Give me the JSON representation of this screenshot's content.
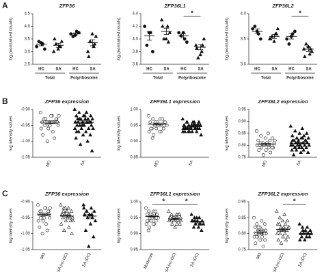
{
  "chart_data": [
    {
      "type": "strip",
      "panel": "A",
      "title": "ZFP36",
      "y_label": "log₂(normalised counts)",
      "categories": [
        "HC",
        "SA",
        "HC",
        "SA"
      ],
      "groups": [
        {
          "label": "Total",
          "size": 2
        },
        {
          "label": "Polyribosome",
          "size": 2
        }
      ],
      "markers": [
        "circle",
        "triangle",
        "circle",
        "triangle"
      ],
      "values": [
        [
          3.2,
          3.3,
          3.4,
          3.1,
          3.35
        ],
        [
          3.0,
          3.2,
          3.3,
          3.4,
          3.1,
          3.5,
          3.2
        ],
        [
          3.7,
          3.8,
          3.6,
          3.75,
          3.65
        ],
        [
          3.0,
          3.2,
          3.4,
          3.6,
          3.7,
          2.8,
          3.3
        ]
      ],
      "means": [
        3.3,
        3.25,
        3.7,
        3.35
      ],
      "errors": [
        0.07,
        0.08,
        0.04,
        0.12
      ],
      "ylim": [
        2.5,
        4.5
      ],
      "yticks": [
        2.5,
        {
          "value": 3.0,
          "label": "3.0"
        },
        3.5,
        {
          "value": 4.0,
          "label": "4.0"
        },
        4.5
      ]
    },
    {
      "type": "strip",
      "title": "ZFP36L1",
      "y_label": "log₂(normalised counts)",
      "categories": [
        "HC",
        "SA",
        "HC",
        "SA"
      ],
      "groups": [
        {
          "label": "Total",
          "size": 2
        },
        {
          "label": "Polyribosome",
          "size": 2
        }
      ],
      "markers": [
        "circle",
        "triangle",
        "circle",
        "triangle"
      ],
      "values": [
        [
          4.2,
          4.1,
          3.9,
          3.8,
          4.1
        ],
        [
          4.3,
          4.2,
          4.0,
          4.1,
          4.0,
          4.2,
          3.95
        ],
        [
          4.1,
          4.0,
          4.05,
          3.95,
          4.1
        ],
        [
          3.9,
          3.8,
          3.7,
          4.0,
          3.75,
          3.85,
          3.9
        ]
      ],
      "means": [
        4.05,
        4.12,
        4.05,
        3.87
      ],
      "errors": [
        0.07,
        0.05,
        0.03,
        0.04
      ],
      "significance": [
        {
          "label": "*",
          "from": 2,
          "to": 3
        }
      ],
      "ylim": [
        3.6,
        4.4
      ],
      "yticks": [
        3.6,
        3.8,
        {
          "value": 4.0,
          "label": "4.0"
        },
        4.2,
        4.4
      ]
    },
    {
      "type": "strip",
      "title": "ZFP36L2",
      "y_label": "log₂(normalised counts)",
      "categories": [
        "HC",
        "SA",
        "HC",
        "SA"
      ],
      "groups": [
        {
          "label": "Total",
          "size": 2
        },
        {
          "label": "Polyribosome",
          "size": 2
        }
      ],
      "markers": [
        "circle",
        "triangle",
        "circle",
        "triangle"
      ],
      "values": [
        [
          3.7,
          3.6,
          3.75,
          3.5,
          3.65
        ],
        [
          3.5,
          3.6,
          3.55,
          3.7,
          3.45,
          3.5,
          3.6
        ],
        [
          3.5,
          3.6,
          3.4,
          3.65,
          3.55
        ],
        [
          3.3,
          3.2,
          3.4,
          3.25,
          3.35,
          3.15,
          3.3
        ]
      ],
      "means": [
        3.65,
        3.55,
        3.55,
        3.3
      ],
      "errors": [
        0.05,
        0.04,
        0.05,
        0.05
      ],
      "significance": [
        {
          "label": "*",
          "from": 2,
          "to": 3
        }
      ],
      "ylim": [
        3.0,
        4.0
      ],
      "yticks": [
        {
          "value": 3.0,
          "label": "3.0"
        },
        3.5,
        {
          "value": 4.0,
          "label": "4.0"
        }
      ]
    },
    {
      "type": "strip",
      "panel": "B",
      "title": "ZFP36 expression",
      "y_label": "log intensity values",
      "categories": [
        "MO",
        "SA"
      ],
      "markers": [
        "circle-open",
        "triangle"
      ],
      "values": [
        [
          -0.91,
          -0.92,
          -0.93,
          -0.93,
          -0.94,
          -0.94,
          -0.94,
          -0.95,
          -0.95,
          -0.92,
          -0.93,
          -0.94,
          -0.96,
          -0.96,
          -0.97,
          -0.93,
          -0.94,
          -0.95,
          -0.98,
          -0.99,
          -1.0,
          -0.92,
          -0.94,
          -0.95,
          -0.93
        ],
        [
          -0.9,
          -0.91,
          -0.91,
          -0.92,
          -0.92,
          -0.92,
          -0.93,
          -0.93,
          -0.93,
          -0.93,
          -0.94,
          -0.94,
          -0.94,
          -0.94,
          -0.94,
          -0.95,
          -0.95,
          -0.95,
          -0.95,
          -0.96,
          -0.96,
          -0.96,
          -0.97,
          -0.97,
          -0.98,
          -0.98,
          -0.99,
          -1.0,
          -1.01,
          -1.03,
          -0.92,
          -0.93,
          -0.94,
          -0.95,
          -0.96,
          -0.91,
          -0.93,
          -0.94,
          -0.95,
          -0.97
        ]
      ],
      "means": [
        -0.94,
        -0.94
      ],
      "errors": [
        0.004,
        0.004
      ],
      "ylim": [
        -1.05,
        -0.9
      ],
      "yticks": [
        {
          "value": -0.9,
          "label": "-0.90"
        },
        -0.95,
        {
          "value": -1.0,
          "label": "-1.00"
        },
        -1.05
      ]
    },
    {
      "type": "strip",
      "title": "ZFP36L1 expression",
      "y_label": "log intensity values",
      "categories": [
        "MO",
        "SA"
      ],
      "markers": [
        "circle-open",
        "triangle"
      ],
      "values": [
        [
          0.98,
          0.97,
          0.97,
          0.96,
          0.96,
          0.96,
          0.95,
          0.95,
          0.95,
          0.95,
          0.94,
          0.94,
          0.94,
          0.93,
          0.93,
          0.92,
          0.96,
          0.95,
          0.94,
          0.97,
          0.96,
          0.95,
          0.93,
          0.91,
          0.95
        ],
        [
          0.97,
          0.96,
          0.96,
          0.96,
          0.95,
          0.95,
          0.95,
          0.95,
          0.95,
          0.95,
          0.94,
          0.94,
          0.94,
          0.94,
          0.94,
          0.94,
          0.94,
          0.93,
          0.93,
          0.93,
          0.93,
          0.92,
          0.95,
          0.96,
          0.95,
          0.94,
          0.95,
          0.94,
          0.93,
          0.95,
          0.96,
          0.94,
          0.95,
          0.94,
          0.93,
          0.95,
          0.94,
          0.96,
          0.95,
          0.94
        ]
      ],
      "means": [
        0.954,
        0.946
      ],
      "errors": [
        0.003,
        0.002
      ],
      "ylim": [
        0.85,
        1.0
      ],
      "yticks": [
        {
          "value": 1.0,
          "label": "1.00"
        },
        0.95,
        {
          "value": 0.9,
          "label": "0.90"
        },
        0.85
      ]
    },
    {
      "type": "strip",
      "title": "ZFP36L2 expression",
      "y_label": "log intensity values",
      "categories": [
        "MO",
        "SA"
      ],
      "markers": [
        "circle-open",
        "triangle"
      ],
      "values": [
        [
          0.86,
          0.85,
          0.84,
          0.83,
          0.83,
          0.82,
          0.82,
          0.81,
          0.81,
          0.81,
          0.8,
          0.8,
          0.8,
          0.8,
          0.79,
          0.79,
          0.79,
          0.78,
          0.78,
          0.77,
          0.76,
          0.82,
          0.8,
          0.81,
          0.79
        ],
        [
          0.88,
          0.87,
          0.86,
          0.85,
          0.85,
          0.84,
          0.84,
          0.83,
          0.83,
          0.83,
          0.82,
          0.82,
          0.82,
          0.81,
          0.81,
          0.81,
          0.81,
          0.8,
          0.8,
          0.8,
          0.8,
          0.8,
          0.79,
          0.79,
          0.79,
          0.79,
          0.78,
          0.78,
          0.78,
          0.77,
          0.77,
          0.76,
          0.82,
          0.81,
          0.8,
          0.83,
          0.79,
          0.81,
          0.8,
          0.82
        ]
      ],
      "means": [
        0.805,
        0.808
      ],
      "errors": [
        0.004,
        0.003
      ],
      "ylim": [
        0.75,
        0.95
      ],
      "yticks": [
        0.95,
        {
          "value": 0.9,
          "label": "0.90"
        },
        0.85,
        {
          "value": 0.8,
          "label": "0.80"
        },
        0.75
      ]
    },
    {
      "type": "strip",
      "panel": "C",
      "title": "ZFP36 expression",
      "y_label": "log intensity values",
      "categories": [
        "MO",
        "SA (no OC)",
        "SA (OC)"
      ],
      "markers": [
        "circle-open",
        "triangle-open",
        "triangle"
      ],
      "values": [
        [
          -0.91,
          -0.92,
          -0.93,
          -0.93,
          -0.94,
          -0.94,
          -0.94,
          -0.95,
          -0.95,
          -0.92,
          -0.93,
          -0.94,
          -0.96,
          -0.96,
          -0.97,
          -0.93,
          -0.94,
          -0.95,
          -0.98,
          -0.99,
          -1.0,
          -0.92,
          -0.94,
          -0.95,
          -0.93
        ],
        [
          -0.91,
          -0.92,
          -0.92,
          -0.93,
          -0.93,
          -0.94,
          -0.94,
          -0.94,
          -0.95,
          -0.95,
          -0.95,
          -0.96,
          -0.96,
          -0.97,
          -0.98,
          -0.99,
          -1.0,
          -0.93,
          -0.94,
          -0.95,
          -0.92,
          -0.96,
          -0.94,
          -0.93
        ],
        [
          -0.91,
          -0.92,
          -0.93,
          -0.93,
          -0.94,
          -0.94,
          -0.95,
          -0.95,
          -0.96,
          -0.97,
          -0.99,
          -1.01,
          -1.04,
          -0.92,
          -0.94,
          -0.93
        ]
      ],
      "means": [
        -0.94,
        -0.945,
        -0.945
      ],
      "errors": [
        0.004,
        0.004,
        0.006
      ],
      "ylim": [
        -1.05,
        -0.9
      ],
      "yticks": [
        {
          "value": -0.9,
          "label": "-0.90"
        },
        -0.95,
        {
          "value": -1.0,
          "label": "-1.00"
        },
        -1.05
      ]
    },
    {
      "type": "strip",
      "title": "ZFP36L1 expression",
      "y_label": "log intensity values",
      "categories": [
        "Moderate",
        "SA (no OC)",
        "SA (OC)"
      ],
      "markers": [
        "circle-open",
        "triangle-open",
        "triangle"
      ],
      "values": [
        [
          0.98,
          0.97,
          0.97,
          0.96,
          0.96,
          0.96,
          0.95,
          0.95,
          0.95,
          0.95,
          0.94,
          0.94,
          0.94,
          0.93,
          0.93,
          0.92,
          0.96,
          0.95,
          0.94,
          0.97,
          0.96,
          0.95,
          0.93,
          0.91,
          0.95
        ],
        [
          0.97,
          0.96,
          0.96,
          0.96,
          0.95,
          0.95,
          0.95,
          0.95,
          0.95,
          0.94,
          0.94,
          0.94,
          0.94,
          0.94,
          0.93,
          0.93,
          0.93,
          0.92,
          0.95,
          0.96,
          0.95,
          0.94,
          0.95,
          0.94
        ],
        [
          0.96,
          0.95,
          0.95,
          0.94,
          0.94,
          0.94,
          0.93,
          0.93,
          0.93,
          0.92,
          0.92,
          0.91,
          0.95,
          0.94,
          0.93,
          0.94
        ]
      ],
      "means": [
        0.954,
        0.946,
        0.936
      ],
      "errors": [
        0.003,
        0.002,
        0.003
      ],
      "significance": [
        {
          "label": "*",
          "from": 0,
          "to": 1
        },
        {
          "label": "*",
          "from": 1,
          "to": 2
        }
      ],
      "ylim": [
        0.85,
        1.0
      ],
      "yticks": [
        {
          "value": 1.0,
          "label": "1.00"
        },
        0.95,
        {
          "value": 0.9,
          "label": "0.90"
        },
        0.85
      ]
    },
    {
      "type": "strip",
      "title": "ZFP36L2 expression",
      "y_label": "log intensity values",
      "categories": [
        "MO",
        "SA (no OC)",
        "SA (OC)"
      ],
      "markers": [
        "circle-open",
        "triangle-open",
        "triangle"
      ],
      "values": [
        [
          0.85,
          0.84,
          0.83,
          0.83,
          0.82,
          0.82,
          0.81,
          0.81,
          0.81,
          0.8,
          0.8,
          0.8,
          0.8,
          0.79,
          0.79,
          0.79,
          0.78,
          0.78,
          0.77,
          0.76,
          0.82,
          0.8,
          0.81,
          0.79,
          0.8
        ],
        [
          0.87,
          0.86,
          0.85,
          0.84,
          0.84,
          0.83,
          0.83,
          0.82,
          0.82,
          0.82,
          0.81,
          0.81,
          0.81,
          0.8,
          0.8,
          0.8,
          0.79,
          0.79,
          0.78,
          0.78,
          0.77,
          0.82,
          0.81,
          0.83
        ],
        [
          0.83,
          0.82,
          0.82,
          0.81,
          0.81,
          0.8,
          0.8,
          0.8,
          0.8,
          0.79,
          0.79,
          0.79,
          0.78,
          0.78,
          0.8,
          0.81
        ]
      ],
      "means": [
        0.805,
        0.813,
        0.8
      ],
      "errors": [
        0.004,
        0.004,
        0.003
      ],
      "significance": [
        {
          "label": "*",
          "from": 1,
          "to": 2
        }
      ],
      "ylim": [
        0.75,
        0.9
      ],
      "yticks": [
        {
          "value": 0.9,
          "label": "0.90"
        },
        0.85,
        {
          "value": 0.8,
          "label": "0.80"
        },
        0.75
      ]
    }
  ]
}
